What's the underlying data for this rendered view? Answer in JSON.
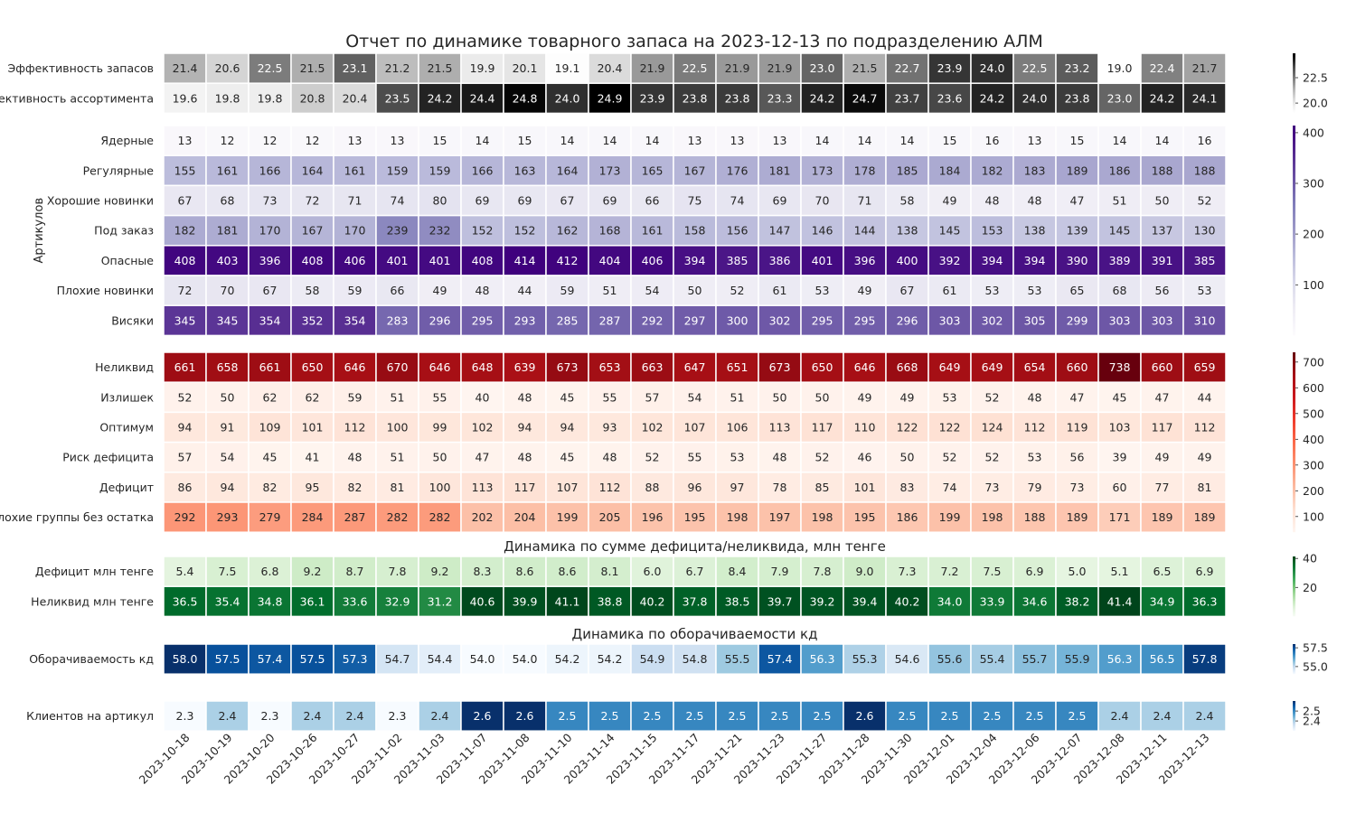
{
  "chart_data": {
    "type": "heatmap",
    "title": "Отчет по динамике товарного запаса на 2023-12-13 по подразделению АЛМ",
    "x": [
      "2023-10-18",
      "2023-10-19",
      "2023-10-20",
      "2023-10-26",
      "2023-10-27",
      "2023-11-02",
      "2023-11-03",
      "2023-11-07",
      "2023-11-08",
      "2023-11-10",
      "2023-11-14",
      "2023-11-15",
      "2023-11-17",
      "2023-11-21",
      "2023-11-23",
      "2023-11-27",
      "2023-11-28",
      "2023-11-30",
      "2023-12-01",
      "2023-12-04",
      "2023-12-06",
      "2023-12-07",
      "2023-12-08",
      "2023-12-11",
      "2023-12-13"
    ],
    "blocks": [
      {
        "id": "efficiency",
        "colormap": "Greys",
        "vmin": 19.0,
        "vmax": 24.9,
        "decimals": 1,
        "colorbar_ticks": [
          "20.0",
          "22.5"
        ],
        "colorbar_tick_values": [
          20.0,
          22.5
        ],
        "rows": [
          {
            "label": "Эффективность запасов",
            "values": [
              21.4,
              20.6,
              22.5,
              21.5,
              23.1,
              21.2,
              21.5,
              19.9,
              20.1,
              19.1,
              20.4,
              21.9,
              22.5,
              21.9,
              21.9,
              23.0,
              21.5,
              22.7,
              23.9,
              24.0,
              22.5,
              23.2,
              19.0,
              22.4,
              21.7
            ]
          },
          {
            "label": "Эффективность ассортимента",
            "values": [
              19.6,
              19.8,
              19.8,
              20.8,
              20.4,
              23.5,
              24.2,
              24.4,
              24.8,
              24.0,
              24.9,
              23.9,
              23.8,
              23.8,
              23.3,
              24.2,
              24.7,
              23.7,
              23.6,
              24.2,
              24.0,
              23.8,
              23.0,
              24.2,
              24.1
            ]
          }
        ]
      },
      {
        "id": "articles",
        "ylabel": "Артикулов",
        "colormap": "Purples",
        "vmin": 0,
        "vmax": 414,
        "decimals": 0,
        "colorbar_ticks": [
          "100",
          "200",
          "300",
          "400"
        ],
        "colorbar_tick_values": [
          100,
          200,
          300,
          400
        ],
        "rows": [
          {
            "label": "Ядерные",
            "values": [
              13,
              12,
              12,
              12,
              13,
              13,
              15,
              14,
              15,
              14,
              14,
              14,
              13,
              13,
              13,
              14,
              14,
              14,
              15,
              16,
              13,
              15,
              14,
              14,
              16
            ]
          },
          {
            "label": "Регулярные",
            "values": [
              155,
              161,
              166,
              164,
              161,
              159,
              159,
              166,
              163,
              164,
              173,
              165,
              167,
              176,
              181,
              173,
              178,
              185,
              184,
              182,
              183,
              189,
              186,
              188,
              188
            ]
          },
          {
            "label": "Хорошие новинки",
            "values": [
              67,
              68,
              73,
              72,
              71,
              74,
              80,
              69,
              69,
              67,
              69,
              66,
              75,
              74,
              69,
              70,
              71,
              58,
              49,
              48,
              48,
              47,
              51,
              50,
              52
            ]
          },
          {
            "label": "Под заказ",
            "values": [
              182,
              181,
              170,
              167,
              170,
              239,
              232,
              152,
              152,
              162,
              168,
              161,
              158,
              156,
              147,
              146,
              144,
              138,
              145,
              153,
              138,
              139,
              145,
              137,
              130
            ]
          },
          {
            "label": "Опасные",
            "values": [
              408,
              403,
              396,
              408,
              406,
              401,
              401,
              408,
              414,
              412,
              404,
              406,
              394,
              385,
              386,
              401,
              396,
              400,
              392,
              394,
              394,
              390,
              389,
              391,
              385
            ]
          },
          {
            "label": "Плохие новинки",
            "values": [
              72,
              70,
              67,
              58,
              59,
              66,
              49,
              48,
              44,
              59,
              51,
              54,
              50,
              52,
              61,
              53,
              49,
              67,
              61,
              53,
              53,
              65,
              68,
              56,
              53
            ]
          },
          {
            "label": "Висяки",
            "values": [
              345,
              345,
              354,
              352,
              354,
              283,
              296,
              295,
              293,
              285,
              287,
              292,
              297,
              300,
              302,
              295,
              295,
              296,
              303,
              302,
              305,
              299,
              303,
              303,
              310
            ]
          }
        ]
      },
      {
        "id": "groups",
        "colormap": "Reds",
        "vmin": 39,
        "vmax": 738,
        "decimals": 0,
        "colorbar_ticks": [
          "100",
          "200",
          "300",
          "400",
          "500",
          "600",
          "700"
        ],
        "colorbar_tick_values": [
          100,
          200,
          300,
          400,
          500,
          600,
          700
        ],
        "rows": [
          {
            "label": "Неликвид",
            "values": [
              661,
              658,
              661,
              650,
              646,
              670,
              646,
              648,
              639,
              673,
              653,
              663,
              647,
              651,
              673,
              650,
              646,
              668,
              649,
              649,
              654,
              660,
              738,
              660,
              659
            ]
          },
          {
            "label": "Излишек",
            "values": [
              52,
              50,
              62,
              62,
              59,
              51,
              55,
              40,
              48,
              45,
              55,
              57,
              54,
              51,
              50,
              50,
              49,
              49,
              53,
              52,
              48,
              47,
              45,
              47,
              44
            ]
          },
          {
            "label": "Оптимум",
            "values": [
              94,
              91,
              109,
              101,
              112,
              100,
              99,
              102,
              94,
              94,
              93,
              102,
              107,
              106,
              113,
              117,
              110,
              122,
              122,
              124,
              112,
              119,
              103,
              117,
              112
            ]
          },
          {
            "label": "Риск дефицита",
            "values": [
              57,
              54,
              45,
              41,
              48,
              51,
              50,
              47,
              48,
              45,
              48,
              52,
              55,
              53,
              48,
              52,
              46,
              50,
              52,
              52,
              53,
              56,
              39,
              49,
              49
            ]
          },
          {
            "label": "Дефицит",
            "values": [
              86,
              94,
              82,
              95,
              82,
              81,
              100,
              113,
              117,
              107,
              112,
              88,
              96,
              97,
              78,
              85,
              101,
              83,
              74,
              73,
              79,
              73,
              60,
              77,
              81
            ]
          },
          {
            "label": "Плохие группы без остатка",
            "values": [
              292,
              293,
              279,
              284,
              287,
              282,
              282,
              202,
              204,
              199,
              205,
              196,
              195,
              198,
              197,
              198,
              195,
              186,
              199,
              198,
              188,
              189,
              171,
              189,
              189
            ]
          }
        ]
      },
      {
        "id": "money",
        "title": "Динамика по сумме дефицита/неликвида, млн тенге",
        "colormap": "Greens",
        "vmin": 0,
        "vmax": 41.4,
        "decimals": 1,
        "colorbar_ticks": [
          "20",
          "40"
        ],
        "colorbar_tick_values": [
          20,
          40
        ],
        "rows": [
          {
            "label": "Дефицит млн тенге",
            "values": [
              5.4,
              7.5,
              6.8,
              9.2,
              8.7,
              7.8,
              9.2,
              8.3,
              8.6,
              8.6,
              8.1,
              6.0,
              6.7,
              8.4,
              7.9,
              7.8,
              9.0,
              7.3,
              7.2,
              7.5,
              6.9,
              5.0,
              5.1,
              6.5,
              6.9
            ]
          },
          {
            "label": "Неликвид млн тенге",
            "values": [
              36.5,
              35.4,
              34.8,
              36.1,
              33.6,
              32.9,
              31.2,
              40.6,
              39.9,
              41.1,
              38.8,
              40.2,
              37.8,
              38.5,
              39.7,
              39.2,
              39.4,
              40.2,
              34.0,
              33.9,
              34.6,
              38.2,
              41.4,
              34.9,
              36.3
            ]
          }
        ]
      },
      {
        "id": "turnover",
        "title": "Динамика по оборачиваемости кд",
        "colormap": "Blues",
        "vmin": 54.0,
        "vmax": 58.0,
        "decimals": 1,
        "colorbar_ticks": [
          "55.0",
          "57.5"
        ],
        "colorbar_tick_values": [
          55.0,
          57.5
        ],
        "rows": [
          {
            "label": "Оборачиваемость кд",
            "values": [
              58.0,
              57.5,
              57.4,
              57.5,
              57.3,
              54.7,
              54.4,
              54.0,
              54.0,
              54.2,
              54.2,
              54.9,
              54.8,
              55.5,
              57.4,
              56.3,
              55.3,
              54.6,
              55.6,
              55.4,
              55.7,
              55.9,
              56.3,
              56.5,
              57.8
            ]
          }
        ]
      },
      {
        "id": "clients",
        "colormap": "Blues",
        "vmin": 2.3,
        "vmax": 2.6,
        "decimals": 1,
        "colorbar_ticks": [
          "2.4",
          "2.5"
        ],
        "colorbar_tick_values": [
          2.4,
          2.5
        ],
        "rows": [
          {
            "label": "Клиентов на артикул",
            "values": [
              2.3,
              2.4,
              2.3,
              2.4,
              2.4,
              2.3,
              2.4,
              2.6,
              2.6,
              2.5,
              2.5,
              2.5,
              2.5,
              2.5,
              2.5,
              2.5,
              2.6,
              2.5,
              2.5,
              2.5,
              2.5,
              2.5,
              2.4,
              2.4,
              2.4
            ]
          }
        ]
      }
    ]
  }
}
